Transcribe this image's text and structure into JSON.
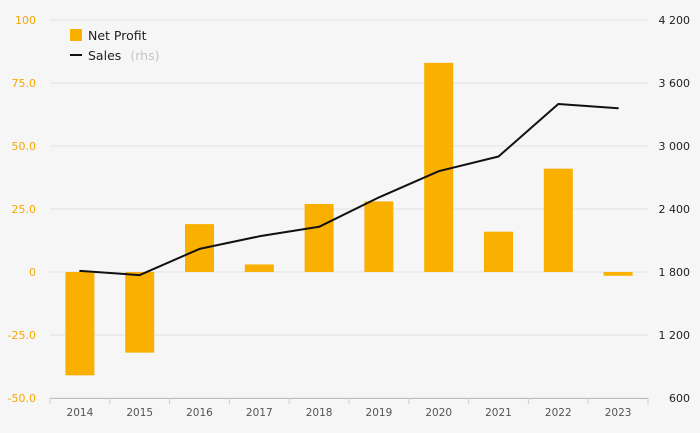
{
  "colors": {
    "bar": "#f9b000",
    "line": "#111111",
    "left_axis": "#f5a800",
    "grid": "#e3e3e3",
    "background": "#f6f6f6"
  },
  "legend": {
    "bar_label": "Net Profit",
    "line_label": "Sales",
    "line_suffix": "(rhs)",
    "placement": "top-left"
  },
  "chart_data": {
    "type": "bar",
    "title": "",
    "xlabel": "",
    "ylabel": "",
    "categories": [
      "2014",
      "2015",
      "2016",
      "2017",
      "2018",
      "2019",
      "2020",
      "2021",
      "2022",
      "2023"
    ],
    "series": [
      {
        "name": "Net Profit",
        "type": "bar",
        "axis": "left",
        "values": [
          -41.0,
          -32.0,
          19.0,
          3.0,
          27.0,
          28.0,
          83.0,
          16.0,
          41.0,
          -1.5
        ]
      },
      {
        "name": "Sales",
        "type": "line",
        "axis": "right",
        "values": [
          1810,
          1770,
          2020,
          2140,
          2230,
          2510,
          2760,
          2900,
          3400,
          3360
        ]
      }
    ],
    "ylim": [
      -50,
      100
    ],
    "y_ticks": [
      "-50.0",
      "-25.0",
      "0",
      "25.0",
      "50.0",
      "75.0",
      "100"
    ],
    "y_tick_values": [
      -50,
      -25,
      0,
      25,
      50,
      75,
      100
    ],
    "y2lim": [
      600,
      4200
    ],
    "y2_ticks": [
      "600",
      "1 200",
      "1 800",
      "2 400",
      "3 000",
      "3 600",
      "4 200"
    ],
    "y2_tick_values": [
      600,
      1200,
      1800,
      2400,
      3000,
      3600,
      4200
    ],
    "grid": true
  }
}
